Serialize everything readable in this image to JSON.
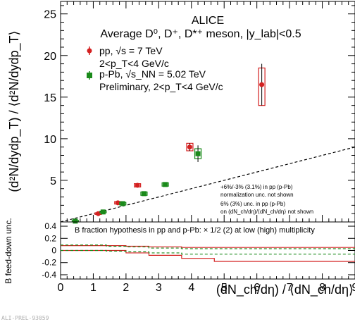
{
  "chart_data": [
    {
      "type": "scatter",
      "panel": "main",
      "ylabel": "(d²N/dydp_T) / ⟨d²N/dydp_T⟩",
      "ylim": [
        0,
        26.5
      ],
      "y_ticks": [
        5,
        10,
        15,
        20,
        25
      ],
      "xlim": [
        0,
        9
      ],
      "grid": false,
      "header": {
        "title": "ALICE",
        "subtitle": "Average D⁰, D⁺, D*⁺ meson, |y_lab|<0.5"
      },
      "legend_position": "top-left",
      "series": [
        {
          "name": "pp, √s = 7 TeV",
          "detail": "2<p_T<4 GeV/c",
          "color": "#d42020",
          "marker": "circle",
          "points": [
            {
              "x": 1.15,
              "y": 1.0,
              "err": 0.1,
              "box_lo": 0.9,
              "box_hi": 1.1
            },
            {
              "x": 1.75,
              "y": 2.3,
              "err": 0.15,
              "box_lo": 2.15,
              "box_hi": 2.45
            },
            {
              "x": 2.35,
              "y": 4.4,
              "err": 0.2,
              "box_lo": 4.2,
              "box_hi": 4.6
            },
            {
              "x": 3.95,
              "y": 9.0,
              "err": 0.45,
              "box_lo": 8.55,
              "box_hi": 9.45
            },
            {
              "x": 6.15,
              "y": 16.5,
              "err": 2.5,
              "box_lo": 14.0,
              "box_hi": 18.5
            }
          ]
        },
        {
          "name": "p-Pb, √s_NN = 5.02 TeV",
          "detail": "Preliminary, 2<p_T<4 GeV/c",
          "color": "#1a8a1a",
          "marker": "square",
          "points": [
            {
              "x": 0.45,
              "y": 0.1,
              "err": 0.08,
              "box_lo": 0.02,
              "box_hi": 0.18
            },
            {
              "x": 1.3,
              "y": 1.2,
              "err": 0.1,
              "box_lo": 1.1,
              "box_hi": 1.3
            },
            {
              "x": 1.9,
              "y": 2.2,
              "err": 0.15,
              "box_lo": 2.05,
              "box_hi": 2.35
            },
            {
              "x": 2.55,
              "y": 3.4,
              "err": 0.2,
              "box_lo": 3.2,
              "box_hi": 3.6
            },
            {
              "x": 3.2,
              "y": 4.5,
              "err": 0.2,
              "box_lo": 4.3,
              "box_hi": 4.7
            },
            {
              "x": 4.2,
              "y": 8.2,
              "err": 1.0,
              "box_lo": 7.6,
              "box_hi": 8.8
            }
          ]
        }
      ],
      "reference_line": {
        "style": "dashed",
        "color": "#000000",
        "x": [
          0,
          9
        ],
        "y": [
          0,
          9
        ]
      },
      "annotations": [
        "+6%/-3% (3.1%) in pp (p-Pb)",
        "normalization unc. not shown",
        "6% (3%) unc. in pp (p-Pb)",
        "on (dN_ch/dη)/⟨dN_ch/dη⟩ not shown"
      ]
    },
    {
      "type": "line",
      "panel": "ratio",
      "ylabel": "B feed-down unc.",
      "xlabel": "(dN_ch/dη) / ⟨dN_ch/dη⟩",
      "xlim": [
        0,
        9
      ],
      "ylim": [
        -0.47,
        0.47
      ],
      "x_ticks": [
        0,
        1,
        2,
        3,
        4,
        5,
        6,
        7,
        8,
        9
      ],
      "y_ticks": [
        -0.4,
        -0.2,
        0,
        0.2,
        0.4
      ],
      "annotation": "B fraction hypothesis in pp and p-Pb: × 1/2 (2) at low (high) multiplicity",
      "series": [
        {
          "name": "pp upper",
          "color": "#d42020",
          "style": "solid",
          "steps": [
            [
              0.0,
              0.08
            ],
            [
              1.4,
              0.08
            ],
            [
              2.0,
              0.07
            ],
            [
              2.7,
              0.06
            ],
            [
              3.7,
              0.05
            ],
            [
              4.7,
              0.05
            ],
            [
              9.0,
              0.05
            ]
          ]
        },
        {
          "name": "pp lower",
          "color": "#d42020",
          "style": "solid",
          "steps": [
            [
              0.0,
              0.0
            ],
            [
              1.4,
              0.0
            ],
            [
              2.0,
              -0.04
            ],
            [
              2.7,
              -0.08
            ],
            [
              3.7,
              -0.13
            ],
            [
              4.7,
              -0.18
            ],
            [
              9.0,
              -0.18
            ]
          ]
        },
        {
          "name": "p-Pb upper",
          "color": "#1a8a1a",
          "style": "dashed",
          "steps": [
            [
              0.0,
              0.09
            ],
            [
              1.4,
              0.07
            ],
            [
              2.0,
              0.06
            ],
            [
              2.7,
              0.04
            ],
            [
              3.7,
              0.03
            ],
            [
              9.0,
              0.03
            ]
          ]
        },
        {
          "name": "p-Pb lower",
          "color": "#1a8a1a",
          "style": "dashed",
          "steps": [
            [
              0.0,
              0.0
            ],
            [
              1.4,
              -0.01
            ],
            [
              2.0,
              -0.02
            ],
            [
              2.7,
              -0.04
            ],
            [
              3.7,
              -0.06
            ],
            [
              9.0,
              -0.06
            ]
          ]
        }
      ]
    }
  ],
  "footer_id": "ALI-PREL-93059"
}
